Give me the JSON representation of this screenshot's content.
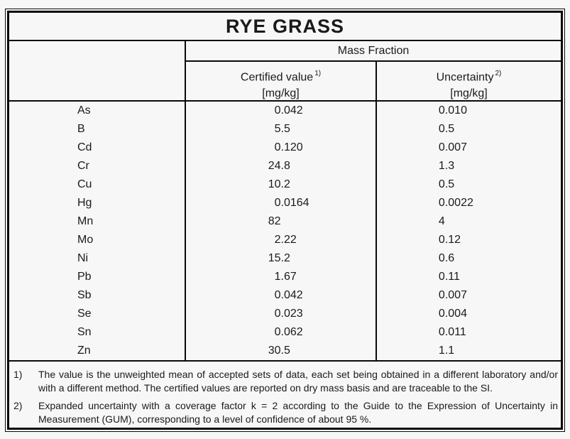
{
  "page": {
    "background_color": "#f7f7f7",
    "border_color": "#0a0a0a"
  },
  "table": {
    "title": "RYE GRASS",
    "header": {
      "group_label": "Mass Fraction",
      "columns": [
        {
          "label": "Certified value",
          "footnote_ref": "1)",
          "unit": "[mg/kg]"
        },
        {
          "label": "Uncertainty",
          "footnote_ref": "2)",
          "unit": "[mg/kg]"
        }
      ]
    },
    "rows": [
      {
        "element": "As",
        "certified": "0.042",
        "uncertainty": "0.010"
      },
      {
        "element": "B",
        "certified": "5.5",
        "uncertainty": "0.5"
      },
      {
        "element": "Cd",
        "certified": "0.120",
        "uncertainty": "0.007"
      },
      {
        "element": "Cr",
        "certified": "24.8",
        "uncertainty": "1.3"
      },
      {
        "element": "Cu",
        "certified": "10.2",
        "uncertainty": "0.5"
      },
      {
        "element": "Hg",
        "certified": "0.0164",
        "uncertainty": "0.0022"
      },
      {
        "element": "Mn",
        "certified": "82",
        "uncertainty": "4"
      },
      {
        "element": "Mo",
        "certified": "2.22",
        "uncertainty": "0.12"
      },
      {
        "element": "Ni",
        "certified": "15.2",
        "uncertainty": "0.6"
      },
      {
        "element": "Pb",
        "certified": "1.67",
        "uncertainty": "0.11"
      },
      {
        "element": "Sb",
        "certified": "0.042",
        "uncertainty": "0.007"
      },
      {
        "element": "Se",
        "certified": "0.023",
        "uncertainty": "0.004"
      },
      {
        "element": "Sn",
        "certified": "0.062",
        "uncertainty": "0.011"
      },
      {
        "element": "Zn",
        "certified": "30.5",
        "uncertainty": "1.1"
      }
    ],
    "footnotes": [
      {
        "marker": "1)",
        "text": "The value is the unweighted mean of accepted sets of data, each set being obtained in a different laboratory and/or with a different method. The certified values are reported on dry mass basis and are traceable to the SI."
      },
      {
        "marker": "2)",
        "text": "Expanded uncertainty with a coverage factor k = 2 according to the Guide to the Expression of Uncertainty in Measurement (GUM), corresponding to a level of confidence of about 95 %."
      }
    ]
  }
}
